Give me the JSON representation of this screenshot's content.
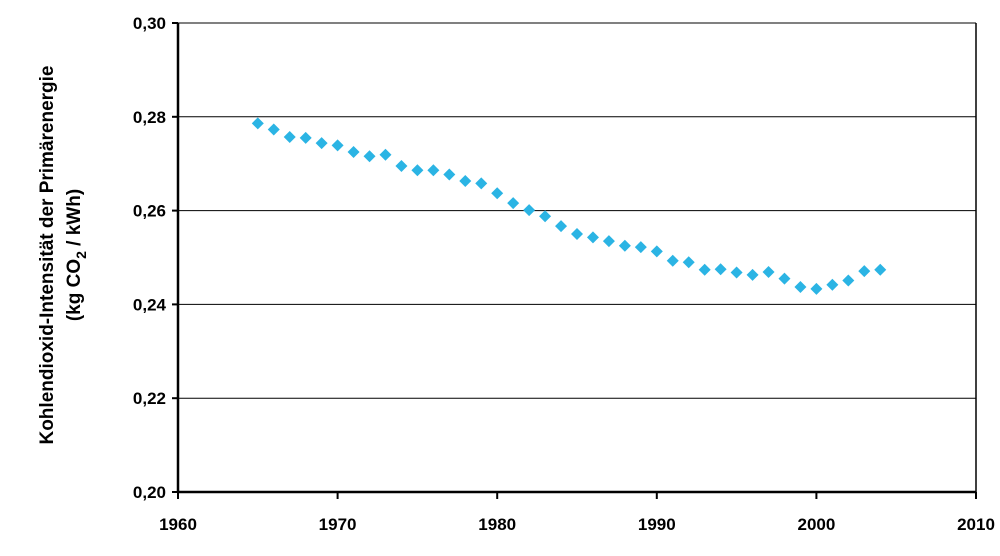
{
  "chart_data": {
    "type": "scatter",
    "title": "",
    "xlabel": "",
    "ylabel_line1": "Kohlendioxid-Intensität der Primärenergie",
    "ylabel_line2_prefix": "(kg CO",
    "ylabel_line2_sub": "2",
    "ylabel_line2_suffix": " / kWh)",
    "xlim": [
      1960,
      2010
    ],
    "ylim": [
      0.2,
      0.3
    ],
    "xticks": [
      1960,
      1970,
      1980,
      1990,
      2000,
      2010
    ],
    "yticks": [
      0.2,
      0.22,
      0.24,
      0.26,
      0.28,
      0.3
    ],
    "ytick_labels": [
      "0,20",
      "0,22",
      "0,24",
      "0,26",
      "0,28",
      "0,30"
    ],
    "xtick_labels": [
      "1960",
      "1970",
      "1980",
      "1990",
      "2000",
      "2010"
    ],
    "grid": "horizontal",
    "marker": "diamond",
    "color": "#2bb4e4",
    "series": [
      {
        "x": [
          1965,
          1966,
          1967,
          1968,
          1969,
          1970,
          1971,
          1972,
          1973,
          1974,
          1975,
          1976,
          1977,
          1978,
          1979,
          1980,
          1981,
          1982,
          1983,
          1984,
          1985,
          1986,
          1987,
          1988,
          1989,
          1990,
          1991,
          1992,
          1993,
          1994,
          1995,
          1996,
          1997,
          1998,
          1999,
          2000,
          2001,
          2002,
          2003,
          2004
        ],
        "values": [
          0.2786,
          0.2773,
          0.2757,
          0.2755,
          0.2744,
          0.2739,
          0.2725,
          0.2716,
          0.2719,
          0.2695,
          0.2686,
          0.2686,
          0.2677,
          0.2663,
          0.2658,
          0.2637,
          0.2616,
          0.2601,
          0.2588,
          0.2567,
          0.255,
          0.2543,
          0.2535,
          0.2525,
          0.2522,
          0.2513,
          0.2493,
          0.249,
          0.2474,
          0.2475,
          0.2468,
          0.2463,
          0.2469,
          0.2455,
          0.2437,
          0.2433,
          0.2442,
          0.2451,
          0.2471,
          0.2474
        ]
      }
    ]
  }
}
